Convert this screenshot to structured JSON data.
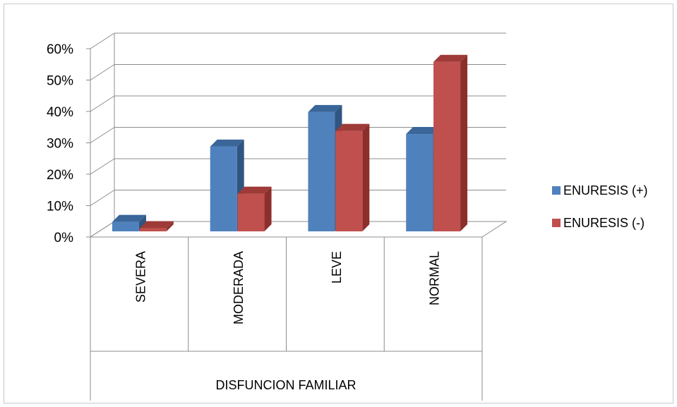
{
  "chart_data": {
    "type": "bar",
    "categories": [
      "SEVERA",
      "MODERADA",
      "LEVE",
      "NORMAL"
    ],
    "category_group_label": "DISFUNCION FAMILIAR",
    "series": [
      {
        "name": "ENURESIS (+)",
        "values": [
          3,
          27,
          38,
          31
        ],
        "color": "#4F81BD",
        "top_color": "#3A6699",
        "side_color": "#2F5580"
      },
      {
        "name": "ENURESIS (-)",
        "values": [
          1,
          12,
          32,
          54
        ],
        "color": "#C0504D",
        "top_color": "#9E3A37",
        "side_color": "#8C2F2C"
      }
    ],
    "y_ticks": [
      "0%",
      "10%",
      "20%",
      "30%",
      "40%",
      "50%",
      "60%"
    ],
    "ylim": [
      0,
      60
    ],
    "legend_position": "right",
    "grid": true,
    "style": "3d-clustered-column"
  }
}
